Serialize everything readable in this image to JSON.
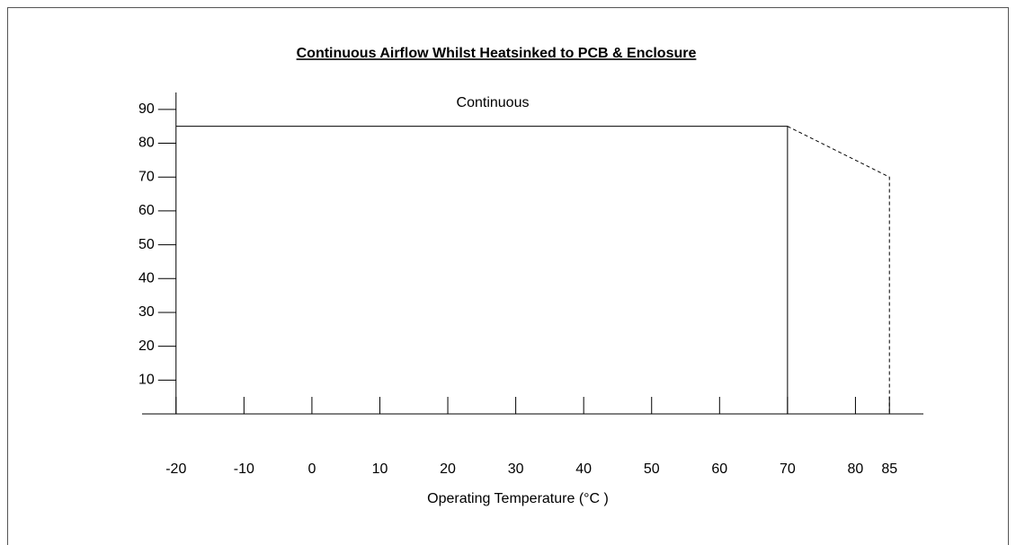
{
  "chart_data": {
    "type": "line",
    "title": "Continuous Airflow Whilst Heatsinked to PCB & Enclosure",
    "annotation": "Continuous",
    "xlabel": "Operating Temperature  (°C )",
    "xlim": [
      -25,
      90
    ],
    "ylim": [
      0,
      95
    ],
    "xticks": [
      -20,
      -10,
      0,
      10,
      20,
      30,
      40,
      50,
      60,
      70,
      80,
      85
    ],
    "yticks": [
      10,
      20,
      30,
      40,
      50,
      60,
      70,
      80,
      90
    ],
    "series": [
      {
        "color": "#000000",
        "style": "solid",
        "x": [
          -20,
          70,
          70
        ],
        "values": [
          85,
          85,
          0
        ]
      },
      {
        "color": "#000000",
        "style": "dashed",
        "x": [
          70,
          85,
          85
        ],
        "values": [
          85,
          70,
          0
        ]
      }
    ]
  }
}
